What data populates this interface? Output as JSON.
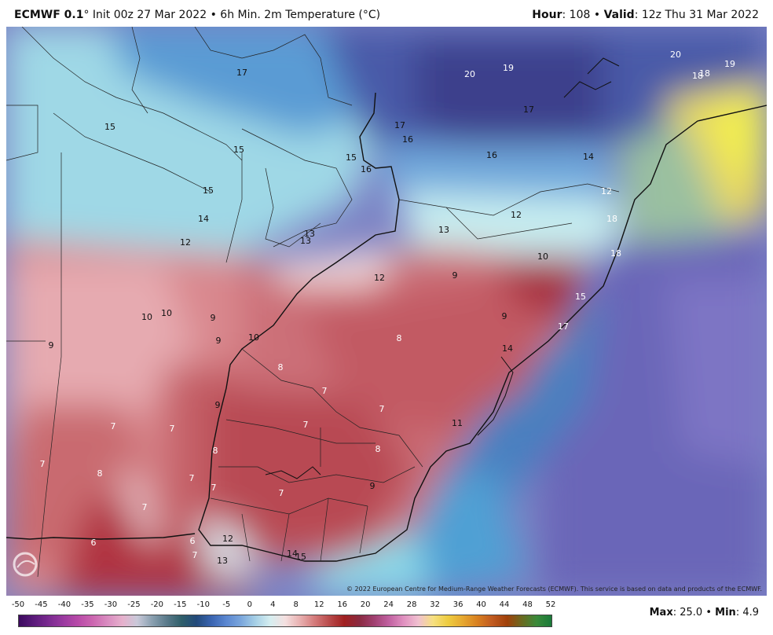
{
  "header": {
    "model": "ECMWF 0.1",
    "degree_sign": "°",
    "init": "Init 00z 27 Mar 2022",
    "bullet": "•",
    "field": "6h Min. 2m Temperature (°C)",
    "hour_label": "Hour",
    "hour_value": ": 108",
    "valid_label": "Valid",
    "valid_value": ": 12z Thu 31 Mar 2022"
  },
  "copyright": "© 2022 European Centre for Medium-Range Weather Forecasts (ECMWF). This service is based on data and products of the ECMWF.",
  "logo_text": "WEATHERBELL",
  "colorbar": {
    "ticks": [
      "-50",
      "-45",
      "-40",
      "-35",
      "-30",
      "-25",
      "-20",
      "-15",
      "-10",
      "-5",
      "0",
      "4",
      "8",
      "12",
      "16",
      "20",
      "24",
      "28",
      "32",
      "36",
      "40",
      "44",
      "48",
      "52"
    ],
    "colors": [
      "#3b0a5e",
      "#5a1a7a",
      "#7a2a90",
      "#9a3aa0",
      "#b84aa8",
      "#cc66b0",
      "#d98cc0",
      "#e6b0cc",
      "#c9c9d9",
      "#8aa0b0",
      "#5a7a8a",
      "#2f5f6a",
      "#224a7a",
      "#3a64b0",
      "#5a86d0",
      "#7aa6dc",
      "#a6d0e6",
      "#d6eef0",
      "#f4e0e0",
      "#e8b0b0",
      "#d47a7a",
      "#b84a4a",
      "#a02020",
      "#8a2a40",
      "#a04070",
      "#c060a0",
      "#e090c0",
      "#f0c0d0",
      "#f6e080",
      "#eecc40",
      "#e6a830",
      "#d88020",
      "#c05a20",
      "#a0400a",
      "#6a6a20",
      "#3a8a3a",
      "#1a7a3a"
    ]
  },
  "maxmin": {
    "max_label": "Max",
    "max_value": ": 25.0",
    "min_label": "Min",
    "min_value": ": 4.9"
  },
  "map_labels": [
    {
      "t": "15",
      "c": "#111"
    },
    {
      "t": "17",
      "c": "#111"
    },
    {
      "t": "20",
      "c": "#fff"
    },
    {
      "t": "19",
      "c": "#fff"
    },
    {
      "t": "20",
      "c": "#fff"
    },
    {
      "t": "18",
      "c": "#fff"
    },
    {
      "t": "18",
      "c": "#fff"
    },
    {
      "t": "19",
      "c": "#fff"
    },
    {
      "t": "17",
      "c": "#111"
    },
    {
      "t": "16",
      "c": "#111"
    },
    {
      "t": "17",
      "c": "#111"
    },
    {
      "t": "16",
      "c": "#111"
    },
    {
      "t": "14",
      "c": "#111"
    },
    {
      "t": "15",
      "c": "#111"
    },
    {
      "t": "16",
      "c": "#111"
    },
    {
      "t": "15",
      "c": "#111"
    },
    {
      "t": "15",
      "c": "#111"
    },
    {
      "t": "14",
      "c": "#111"
    },
    {
      "t": "12",
      "c": "#111"
    },
    {
      "t": "12",
      "c": "#111"
    },
    {
      "t": "13",
      "c": "#111"
    },
    {
      "t": "13",
      "c": "#111"
    },
    {
      "t": "13",
      "c": "#111"
    },
    {
      "t": "12",
      "c": "#fff"
    },
    {
      "t": "18",
      "c": "#fff"
    },
    {
      "t": "18",
      "c": "#fff"
    },
    {
      "t": "10",
      "c": "#111"
    },
    {
      "t": "12",
      "c": "#111"
    },
    {
      "t": "9",
      "c": "#111"
    },
    {
      "t": "15",
      "c": "#fff"
    },
    {
      "t": "9",
      "c": "#111"
    },
    {
      "t": "17",
      "c": "#fff"
    },
    {
      "t": "8",
      "c": "#fff"
    },
    {
      "t": "14",
      "c": "#111"
    },
    {
      "t": "10",
      "c": "#111"
    },
    {
      "t": "10",
      "c": "#111"
    },
    {
      "t": "9",
      "c": "#111"
    },
    {
      "t": "9",
      "c": "#111"
    },
    {
      "t": "10",
      "c": "#111"
    },
    {
      "t": "9",
      "c": "#111"
    },
    {
      "t": "8",
      "c": "#fff"
    },
    {
      "t": "7",
      "c": "#fff"
    },
    {
      "t": "7",
      "c": "#fff"
    },
    {
      "t": "7",
      "c": "#fff"
    },
    {
      "t": "11",
      "c": "#111"
    },
    {
      "t": "9",
      "c": "#111"
    },
    {
      "t": "7",
      "c": "#fff"
    },
    {
      "t": "7",
      "c": "#fff"
    },
    {
      "t": "8",
      "c": "#fff"
    },
    {
      "t": "8",
      "c": "#fff"
    },
    {
      "t": "8",
      "c": "#fff"
    },
    {
      "t": "7",
      "c": "#fff"
    },
    {
      "t": "7",
      "c": "#fff"
    },
    {
      "t": "7",
      "c": "#fff"
    },
    {
      "t": "9",
      "c": "#111"
    },
    {
      "t": "7",
      "c": "#fff"
    },
    {
      "t": "7",
      "c": "#fff"
    },
    {
      "t": "6",
      "c": "#fff"
    },
    {
      "t": "6",
      "c": "#fff"
    },
    {
      "t": "7",
      "c": "#fff"
    },
    {
      "t": "13",
      "c": "#111"
    },
    {
      "t": "12",
      "c": "#111"
    },
    {
      "t": "14",
      "c": "#111"
    },
    {
      "t": "15",
      "c": "#111"
    }
  ]
}
